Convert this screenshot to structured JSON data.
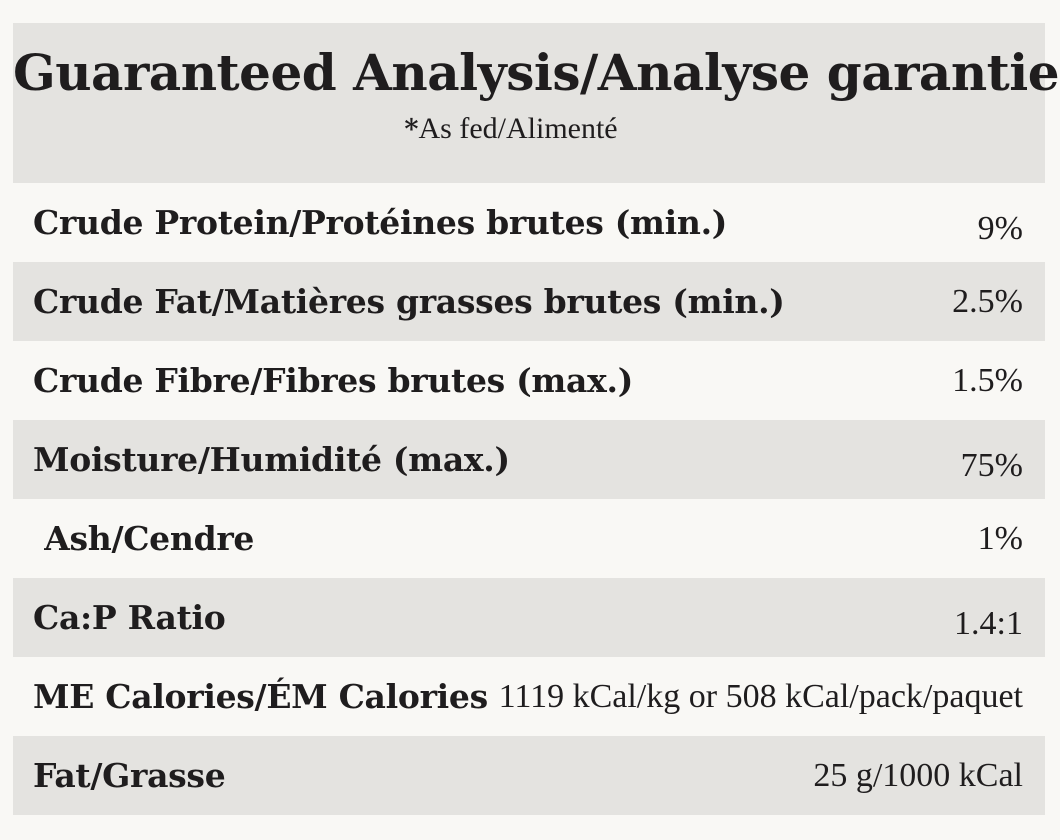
{
  "header": {
    "title": "Guaranteed Analysis/Analyse garantie",
    "subtitle_star": "*",
    "subtitle_text": "As fed/Alimenté"
  },
  "table": {
    "rows": [
      {
        "label": "Crude Protein/Protéines brutes (min.)",
        "value": "9%"
      },
      {
        "label": "Crude Fat/Matières grasses brutes (min.)",
        "value": "2.5%"
      },
      {
        "label": "Crude Fibre/Fibres brutes (max.)",
        "value": "1.5%"
      },
      {
        "label": "Moisture/Humidité (max.)",
        "value": "75%"
      },
      {
        "label": " Ash/Cendre",
        "value": "1%"
      },
      {
        "label": "Ca:P Ratio",
        "value": "1.4:1"
      },
      {
        "label": "ME Calories/ÉM Calories",
        "value": "1119 kCal/kg or 508 kCal/pack/paquet"
      },
      {
        "label": "Fat/Grasse",
        "value": "25 g/1000 kCal"
      }
    ]
  },
  "colors": {
    "page_background": "#f9f8f5",
    "band_background": "#e4e3e0",
    "text": "#1f1d1e"
  }
}
